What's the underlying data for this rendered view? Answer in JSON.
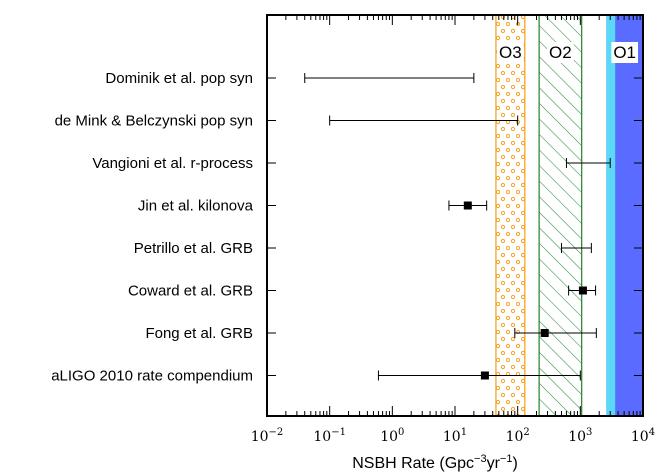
{
  "chart_data": {
    "type": "scatter",
    "title": "",
    "xlabel_main": "NSBH Rate (Gpc",
    "xlabel_sup1": "−3",
    "xlabel_mid": "yr",
    "xlabel_sup2": "−1",
    "xlabel_end": ")",
    "xscale": "log",
    "xlim": [
      0.01,
      10000
    ],
    "x_tick_labels": [
      {
        "value": 0.01,
        "base": "10",
        "exp": "−2"
      },
      {
        "value": 0.1,
        "base": "10",
        "exp": "−1"
      },
      {
        "value": 1,
        "base": "10",
        "exp": "0"
      },
      {
        "value": 10,
        "base": "10",
        "exp": "1"
      },
      {
        "value": 100,
        "base": "10",
        "exp": "2"
      },
      {
        "value": 1000,
        "base": "10",
        "exp": "3"
      },
      {
        "value": 10000,
        "base": "10",
        "exp": "4"
      }
    ],
    "estimates": [
      {
        "label": "Dominik et al. pop syn",
        "low": 0.04,
        "high": 20,
        "value": null
      },
      {
        "label": "de Mink & Belczynski pop syn",
        "low": 0.1,
        "high": 100,
        "value": null
      },
      {
        "label": "Vangioni et al. r-process",
        "low": 600,
        "high": 3000,
        "value": null
      },
      {
        "label": "Jin et al. kilonova",
        "low": 8,
        "high": 32,
        "value": 16
      },
      {
        "label": "Petrillo et al. GRB",
        "low": 500,
        "high": 1500,
        "value": null
      },
      {
        "label": "Coward et al. GRB",
        "low": 650,
        "high": 1750,
        "value": 1100
      },
      {
        "label": "Fong et al. GRB",
        "low": 90,
        "high": 1800,
        "value": 270
      },
      {
        "label": "aLIGO 2010 rate compendium",
        "low": 0.6,
        "high": 1000,
        "value": 30
      }
    ],
    "bands": [
      {
        "label": "O3",
        "low": 45,
        "high": 130,
        "color": "#f5a623",
        "pattern": "dots"
      },
      {
        "label": "O2",
        "low": 220,
        "high": 1050,
        "color": "#2e8b3a",
        "pattern": "hatch"
      },
      {
        "label": "O1",
        "low": 2600,
        "high": 10000,
        "color": "#5a6bff",
        "inner_color": "#5ad8f5",
        "inner_high": 3600,
        "pattern": "solid"
      }
    ]
  }
}
